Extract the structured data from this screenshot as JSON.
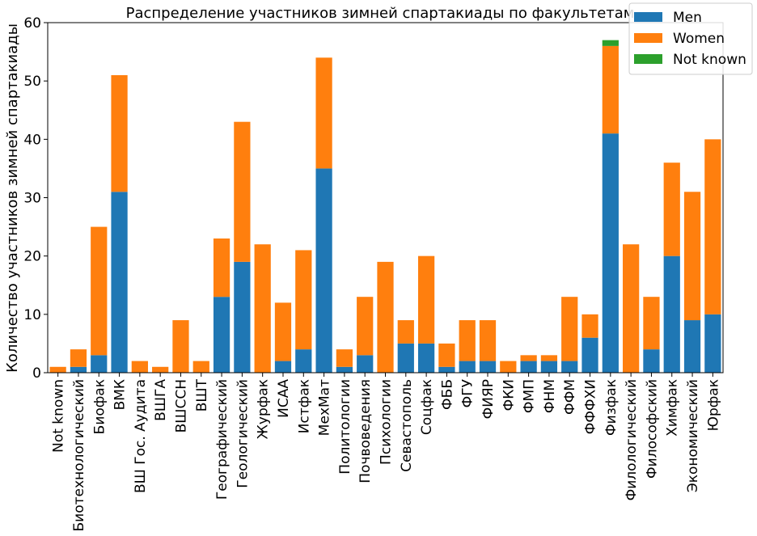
{
  "chart_data": {
    "type": "bar",
    "stacked": true,
    "title": "Распределение участников зимней спартакиады по факультетам",
    "xlabel": "",
    "ylabel": "Количество участников зимней спартакиады",
    "ylim": [
      0,
      60
    ],
    "yticks": [
      0,
      10,
      20,
      30,
      40,
      50,
      60
    ],
    "grid": false,
    "legend_position": "top-right",
    "categories": [
      "Not known",
      "Биотехнологический",
      "Биофак",
      "ВМК",
      "ВШ Гос. Аудита",
      "ВШГА",
      "ВШССН",
      "ВШТ",
      "Географический",
      "Геологический",
      "Журфак",
      "ИСАА",
      "Истфак",
      "МехМат",
      "Политологии",
      "Почвоведения",
      "Психологии",
      "Севастополь",
      "Соцфак",
      "ФББ",
      "ФГУ",
      "ФИЯР",
      "ФКИ",
      "ФМП",
      "ФНМ",
      "ФФМ",
      "ФФФХИ",
      "Физфак",
      "Филологический",
      "Философский",
      "Химфак",
      "Экономический",
      "Юрфак"
    ],
    "series": [
      {
        "name": "Men",
        "color": "#1f77b4",
        "values": [
          0,
          1,
          3,
          31,
          0,
          0,
          0,
          0,
          13,
          19,
          0,
          2,
          4,
          35,
          1,
          3,
          0,
          5,
          5,
          1,
          2,
          2,
          0,
          2,
          2,
          2,
          6,
          41,
          0,
          4,
          20,
          9,
          10
        ]
      },
      {
        "name": "Women",
        "color": "#ff7f0e",
        "values": [
          1,
          3,
          22,
          20,
          2,
          1,
          9,
          2,
          10,
          24,
          22,
          10,
          17,
          19,
          3,
          10,
          19,
          4,
          15,
          4,
          7,
          7,
          2,
          1,
          1,
          11,
          4,
          15,
          22,
          9,
          16,
          22,
          30
        ]
      },
      {
        "name": "Not known",
        "color": "#2ca02c",
        "values": [
          0,
          0,
          0,
          0,
          0,
          0,
          0,
          0,
          0,
          0,
          0,
          0,
          0,
          0,
          0,
          0,
          0,
          0,
          0,
          0,
          0,
          0,
          0,
          0,
          0,
          0,
          0,
          1,
          0,
          0,
          0,
          0,
          0
        ]
      }
    ]
  }
}
